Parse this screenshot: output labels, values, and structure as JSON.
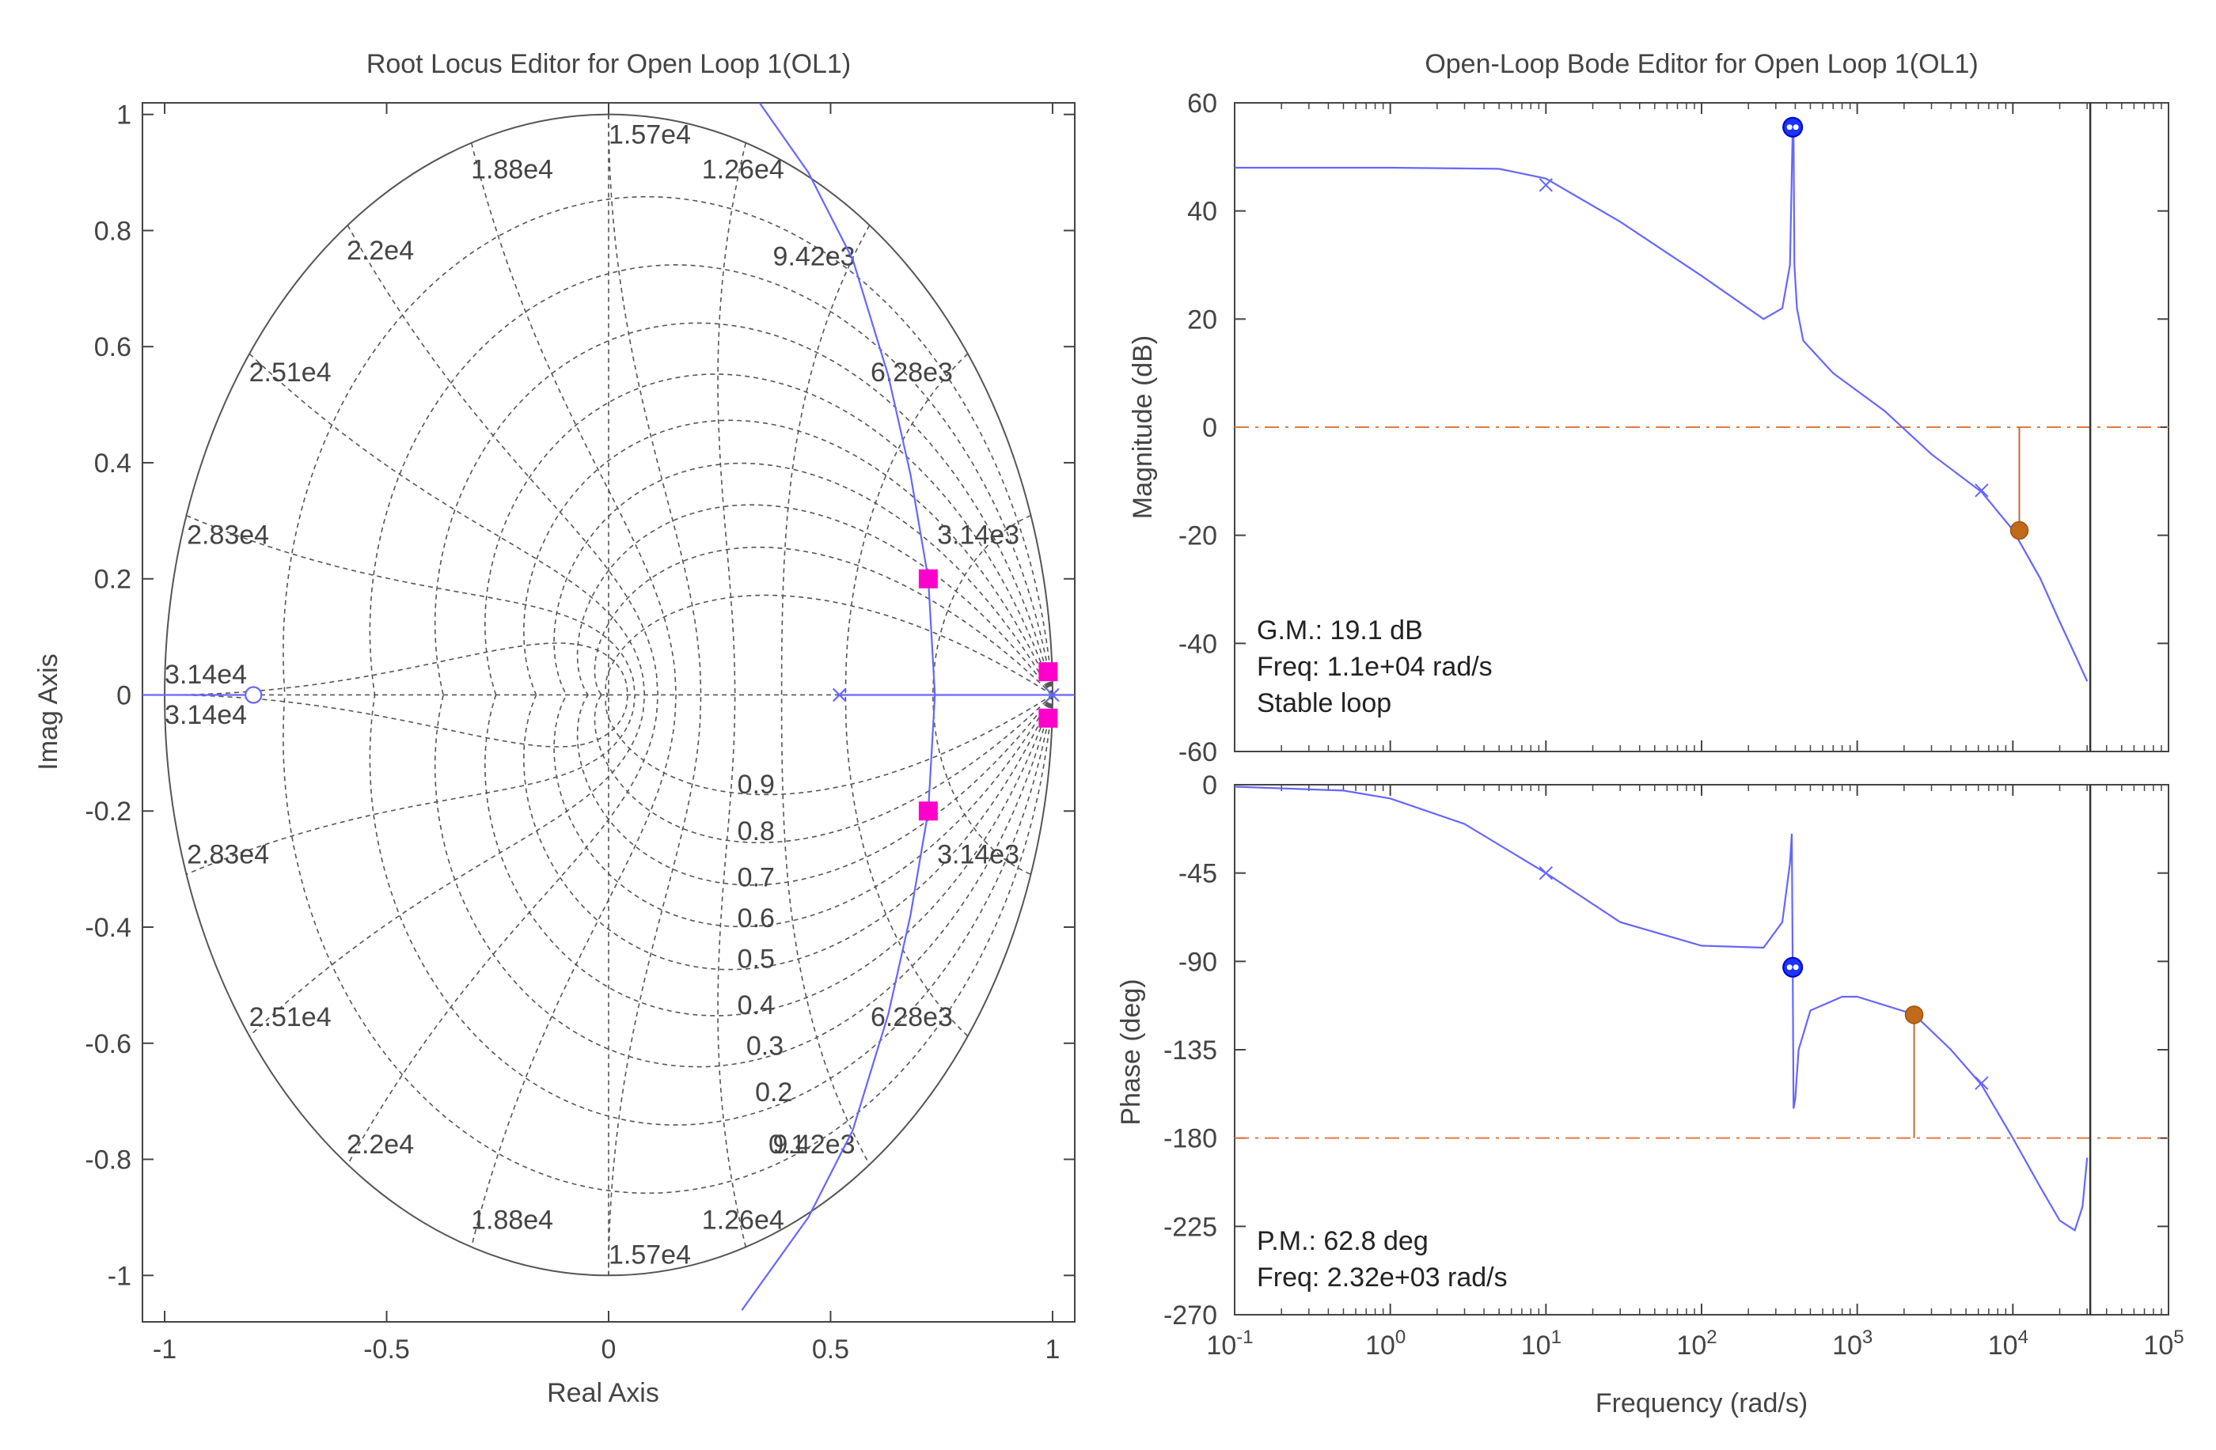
{
  "chart_data": [
    {
      "type": "scatter",
      "subtype": "root-locus",
      "title": "Root Locus Editor for Open Loop 1(OL1)",
      "xlabel": "Real Axis",
      "ylabel": "Imag Axis",
      "xlim": [
        -1.05,
        1.05
      ],
      "ylim": [
        -1.08,
        1.02
      ],
      "xticks": [
        -1,
        -0.5,
        0,
        0.5,
        1
      ],
      "xtick_labels": [
        "-1",
        "-0.5",
        "0",
        "0.5",
        "1"
      ],
      "yticks": [
        1,
        0.8,
        0.6,
        0.4,
        0.2,
        0,
        -0.2,
        -0.4,
        -0.6,
        -0.8,
        -1
      ],
      "ytick_labels": [
        "1",
        "0.8",
        "0.6",
        "0.4",
        "0.2",
        "0",
        "-0.2",
        "-0.4",
        "-0.6",
        "-0.8",
        "-1"
      ],
      "grid": "z-plane damping / natural frequency grid (dashed)",
      "damping_labels": [
        "0.9",
        "0.8",
        "0.7",
        "0.6",
        "0.5",
        "0.4",
        "0.3",
        "0.2",
        "0.1"
      ],
      "natural_frequency_labels": [
        "1.57e4",
        "1.88e4",
        "1.26e4",
        "2.2e4",
        "9.42e3",
        "2.51e4",
        "6.28e3",
        "2.83e4",
        "3.14e3",
        "3.14e4",
        "3.14e4",
        "2.83e4",
        "3.14e3",
        "2.51e4",
        "6.28e3",
        "2.2e4",
        "9.42e3",
        "1.88e4",
        "1.26e4",
        "1.57e4"
      ],
      "open_loop_poles": [
        [
          0.52,
          0
        ],
        [
          1.0,
          0
        ]
      ],
      "open_loop_zeros": [
        [
          -0.8,
          0
        ]
      ],
      "closed_loop_poles": [
        [
          0.72,
          0.2
        ],
        [
          0.72,
          -0.2
        ],
        [
          0.99,
          0.04
        ],
        [
          0.99,
          -0.04
        ]
      ],
      "locus_branch": [
        [
          0.34,
          1.02
        ],
        [
          0.45,
          0.9
        ],
        [
          0.55,
          0.75
        ],
        [
          0.63,
          0.55
        ],
        [
          0.68,
          0.38
        ],
        [
          0.72,
          0.2
        ],
        [
          0.735,
          0.0
        ],
        [
          0.72,
          -0.2
        ],
        [
          0.68,
          -0.38
        ],
        [
          0.63,
          -0.55
        ],
        [
          0.55,
          -0.75
        ],
        [
          0.45,
          -0.9
        ],
        [
          0.3,
          -1.06
        ]
      ],
      "colors": {
        "locus": "#6666ff",
        "closed_loop_pole": "#ff00cc",
        "grid": "#555555"
      }
    },
    {
      "type": "line",
      "subtype": "bode-magnitude",
      "title": "Open-Loop Bode Editor for Open Loop 1(OL1)",
      "ylabel": "Magnitude (dB)",
      "xscale": "log",
      "xlim": [
        0.1,
        100000
      ],
      "ylim": [
        -60,
        60
      ],
      "yticks": [
        60,
        40,
        20,
        0,
        -20,
        -40,
        -60
      ],
      "ytick_labels": [
        "60",
        "40",
        "20",
        "0",
        "-20",
        "-40",
        "-60"
      ],
      "series": [
        {
          "x": [
            0.1,
            1,
            5,
            10,
            30,
            100,
            250,
            330,
            370,
            385,
            390,
            395,
            410,
            450,
            700,
            1500,
            3000,
            6300,
            10000,
            15000,
            20000,
            25000,
            30000
          ],
          "values": [
            48,
            48,
            47.8,
            46,
            38,
            28,
            20,
            22,
            30,
            55,
            55,
            30,
            22,
            16,
            10,
            3,
            -5,
            -12,
            -19,
            -28,
            -36,
            -42,
            -47
          ]
        }
      ],
      "markers": {
        "pole_x": [
          [
            10,
            44.8
          ],
          [
            6300,
            -11.7
          ]
        ],
        "notch_o": [
          [
            385,
            55.5
          ]
        ],
        "gain_margin_point": [
          11000,
          -19.1
        ]
      },
      "reference_line_db": 0,
      "annotations": [
        "G.M.: 19.1 dB",
        "Freq: 1.1e+04 rad/s",
        "Stable loop"
      ],
      "nyquist_frequency": 31416,
      "colors": {
        "curve": "#6666ff",
        "margin": "#cc6633",
        "reference": "#e07a40"
      }
    },
    {
      "type": "line",
      "subtype": "bode-phase",
      "ylabel": "Phase (deg)",
      "xlabel": "Frequency (rad/s)",
      "xscale": "log",
      "xlim": [
        0.1,
        100000
      ],
      "ylim": [
        -270,
        0
      ],
      "yticks": [
        0,
        -45,
        -90,
        -135,
        -180,
        -225,
        -270
      ],
      "ytick_labels": [
        "0",
        "-45",
        "-90",
        "-135",
        "-180",
        "-225",
        "-270"
      ],
      "xtick_labels": [
        "10-1",
        "100",
        "101",
        "102",
        "103",
        "104",
        "105"
      ],
      "series": [
        {
          "x": [
            0.1,
            0.5,
            1,
            3,
            10,
            30,
            100,
            250,
            330,
            370,
            380,
            385,
            390,
            400,
            420,
            500,
            800,
            1000,
            2320,
            4000,
            6300,
            10000,
            15000,
            20000,
            25000,
            28000,
            30000
          ],
          "values": [
            -1,
            -3,
            -7,
            -20,
            -45,
            -70,
            -82,
            -83,
            -70,
            -40,
            -25,
            -90,
            -165,
            -160,
            -135,
            -115,
            -108,
            -108,
            -117,
            -135,
            -153,
            -180,
            -205,
            -222,
            -227,
            -215,
            -190
          ]
        }
      ],
      "markers": {
        "pole_x": [
          [
            10,
            -45
          ],
          [
            6300,
            -152
          ]
        ],
        "notch_o": [
          [
            385,
            -93
          ]
        ],
        "phase_margin_point": [
          2320,
          -117.2
        ]
      },
      "reference_line_deg": -180,
      "annotations": [
        "P.M.: 62.8 deg",
        "Freq: 2.32e+03 rad/s"
      ],
      "colors": {
        "curve": "#6666ff",
        "margin": "#cc6633",
        "reference": "#e07a40"
      }
    }
  ],
  "bode_xlabel": "Frequency (rad/s)"
}
